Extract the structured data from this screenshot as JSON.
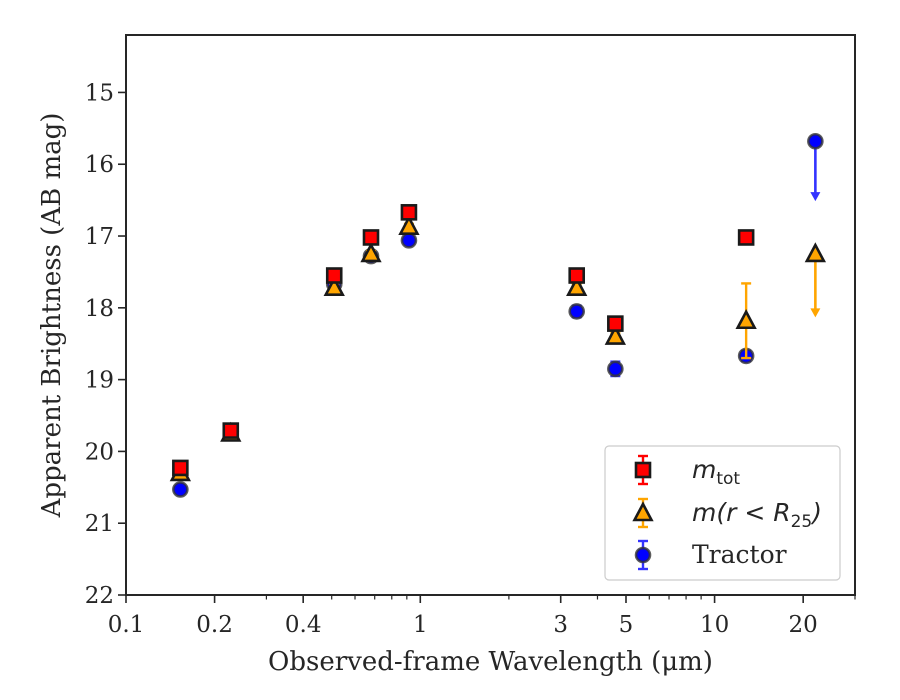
{
  "chart_data": {
    "type": "scatter",
    "xlabel": "Observed-frame Wavelength (μm)",
    "ylabel": "Apparent Brightness (AB mag)",
    "xscale": "log",
    "xlim": [
      0.1,
      30
    ],
    "ylim": [
      22,
      14.2
    ],
    "y_inverted": true,
    "grid": false,
    "legend_position": "lower-right",
    "x_ticks": [
      0.1,
      0.2,
      0.4,
      1,
      3,
      5,
      10,
      20
    ],
    "x_tick_labels": [
      "0.1",
      "0.2",
      "0.4",
      "1",
      "3",
      "5",
      "10",
      "20"
    ],
    "y_ticks": [
      15,
      16,
      17,
      18,
      19,
      20,
      21,
      22
    ],
    "y_tick_labels": [
      "15",
      "16",
      "17",
      "18",
      "19",
      "20",
      "21",
      "22"
    ],
    "series": [
      {
        "name": "m_tot",
        "legend_main": "m",
        "legend_sub": "tot",
        "marker": "square",
        "color": "#ff0000",
        "errcolor": "#ff0000",
        "points": [
          {
            "x": 0.153,
            "y": 20.23,
            "err": 0.05
          },
          {
            "x": 0.227,
            "y": 19.71,
            "err": 0.05
          },
          {
            "x": 0.51,
            "y": 17.55,
            "err": 0.04
          },
          {
            "x": 0.68,
            "y": 17.02,
            "err": 0.04
          },
          {
            "x": 0.915,
            "y": 16.67,
            "err": 0.04
          },
          {
            "x": 3.4,
            "y": 17.55,
            "err": 0.05
          },
          {
            "x": 4.6,
            "y": 18.22,
            "err": 0.05
          },
          {
            "x": 12.8,
            "y": 17.02,
            "err": 0.05
          }
        ]
      },
      {
        "name": "m(r<R_25)",
        "legend_main": "m(r < R",
        "legend_sub": "25",
        "legend_tail": ")",
        "marker": "triangle",
        "color": "#ffa500",
        "errcolor": "#ffa500",
        "points": [
          {
            "x": 0.153,
            "y": 20.3,
            "err": 0.05
          },
          {
            "x": 0.227,
            "y": 19.75,
            "err": 0.05
          },
          {
            "x": 0.51,
            "y": 17.72,
            "err": 0.04
          },
          {
            "x": 0.68,
            "y": 17.25,
            "err": 0.04
          },
          {
            "x": 0.915,
            "y": 16.87,
            "err": 0.04
          },
          {
            "x": 3.4,
            "y": 17.72,
            "err": 0.05
          },
          {
            "x": 4.6,
            "y": 18.4,
            "err": 0.05
          },
          {
            "x": 12.8,
            "y": 18.18,
            "err": 0.52
          },
          {
            "x": 22.0,
            "y": 17.25,
            "upper_limit_to": 18.12
          }
        ]
      },
      {
        "name": "Tractor",
        "marker": "circle",
        "color": "#0000ff",
        "errcolor": "#3333ff",
        "points": [
          {
            "x": 0.153,
            "y": 20.53,
            "err": 0.05
          },
          {
            "x": 0.227,
            "y": 19.72,
            "err": 0.05
          },
          {
            "x": 0.51,
            "y": 17.67,
            "err": 0.04
          },
          {
            "x": 0.68,
            "y": 17.28,
            "err": 0.04
          },
          {
            "x": 0.915,
            "y": 17.06,
            "err": 0.04
          },
          {
            "x": 3.4,
            "y": 18.05,
            "err": 0.08
          },
          {
            "x": 4.6,
            "y": 18.85,
            "err": 0.1
          },
          {
            "x": 12.8,
            "y": 18.67,
            "err": 0.07
          },
          {
            "x": 22.0,
            "y": 15.68,
            "upper_limit_to": 16.5
          }
        ]
      }
    ]
  }
}
